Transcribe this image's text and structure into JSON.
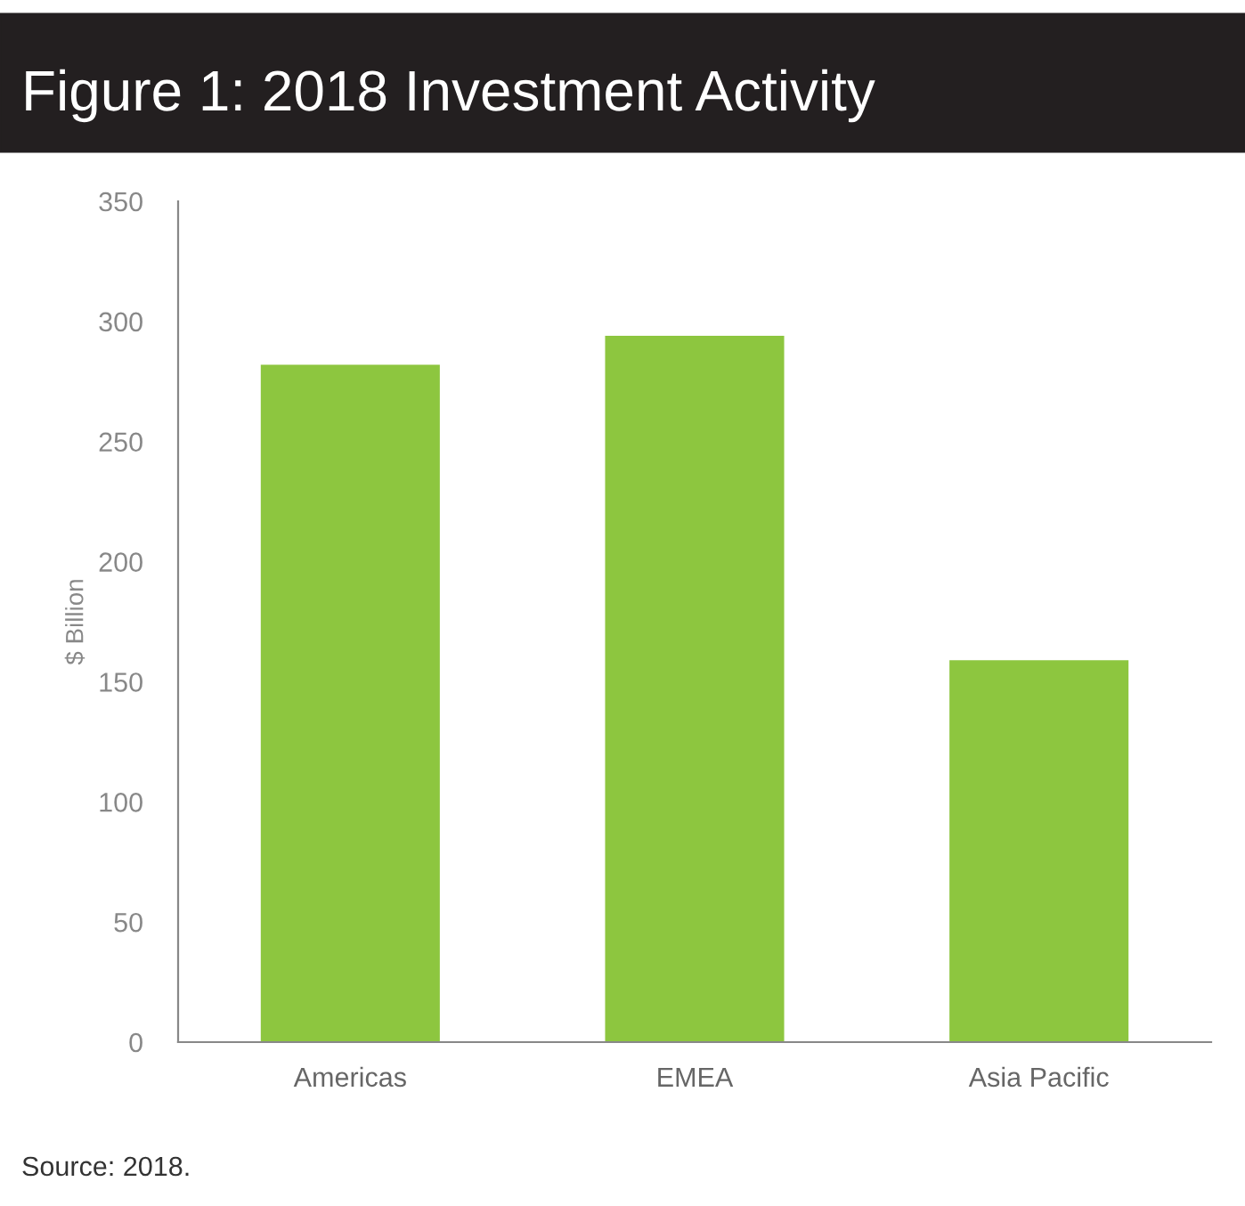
{
  "chart_data": {
    "type": "bar",
    "title": "Figure 1: 2018 Investment Activity",
    "ylabel": "$ Billion",
    "categories": [
      "Americas",
      "EMEA",
      "Asia Pacific"
    ],
    "values": [
      282,
      294,
      159
    ],
    "color": "#8dc63f",
    "ylim": [
      0,
      350
    ],
    "yticks": [
      0,
      50,
      100,
      150,
      200,
      250,
      300,
      350
    ],
    "grid": false,
    "annotations": [
      "Source: 2018."
    ]
  }
}
